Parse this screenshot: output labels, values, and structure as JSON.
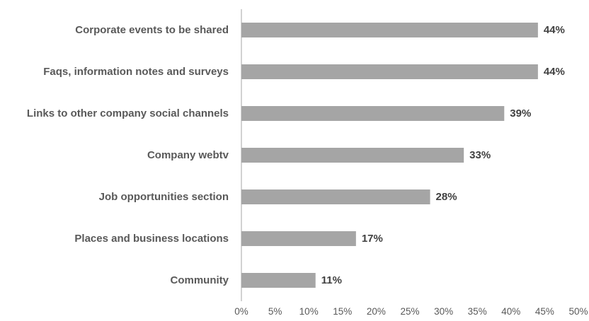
{
  "chart_data": {
    "type": "bar",
    "orientation": "horizontal",
    "title": "",
    "xlabel": "",
    "ylabel": "",
    "categories": [
      "Corporate events to be shared",
      "Faqs, information notes and surveys",
      "Links to other company social channels",
      "Company webtv",
      "Job opportunities section",
      "Places and business locations",
      "Community"
    ],
    "values": [
      44,
      44,
      39,
      33,
      28,
      17,
      11
    ],
    "value_labels": [
      "44%",
      "44%",
      "39%",
      "33%",
      "28%",
      "17%",
      "11%"
    ],
    "xlim": [
      0,
      50
    ],
    "x_ticks": [
      0,
      5,
      10,
      15,
      20,
      25,
      30,
      35,
      40,
      45,
      50
    ],
    "x_tick_labels": [
      "0%",
      "5%",
      "10%",
      "15%",
      "20%",
      "25%",
      "30%",
      "35%",
      "40%",
      "45%",
      "50%"
    ],
    "grid": false,
    "legend": "none",
    "colors": {
      "bar": "#a5a5a5",
      "axis": "#a6a6a6"
    }
  }
}
